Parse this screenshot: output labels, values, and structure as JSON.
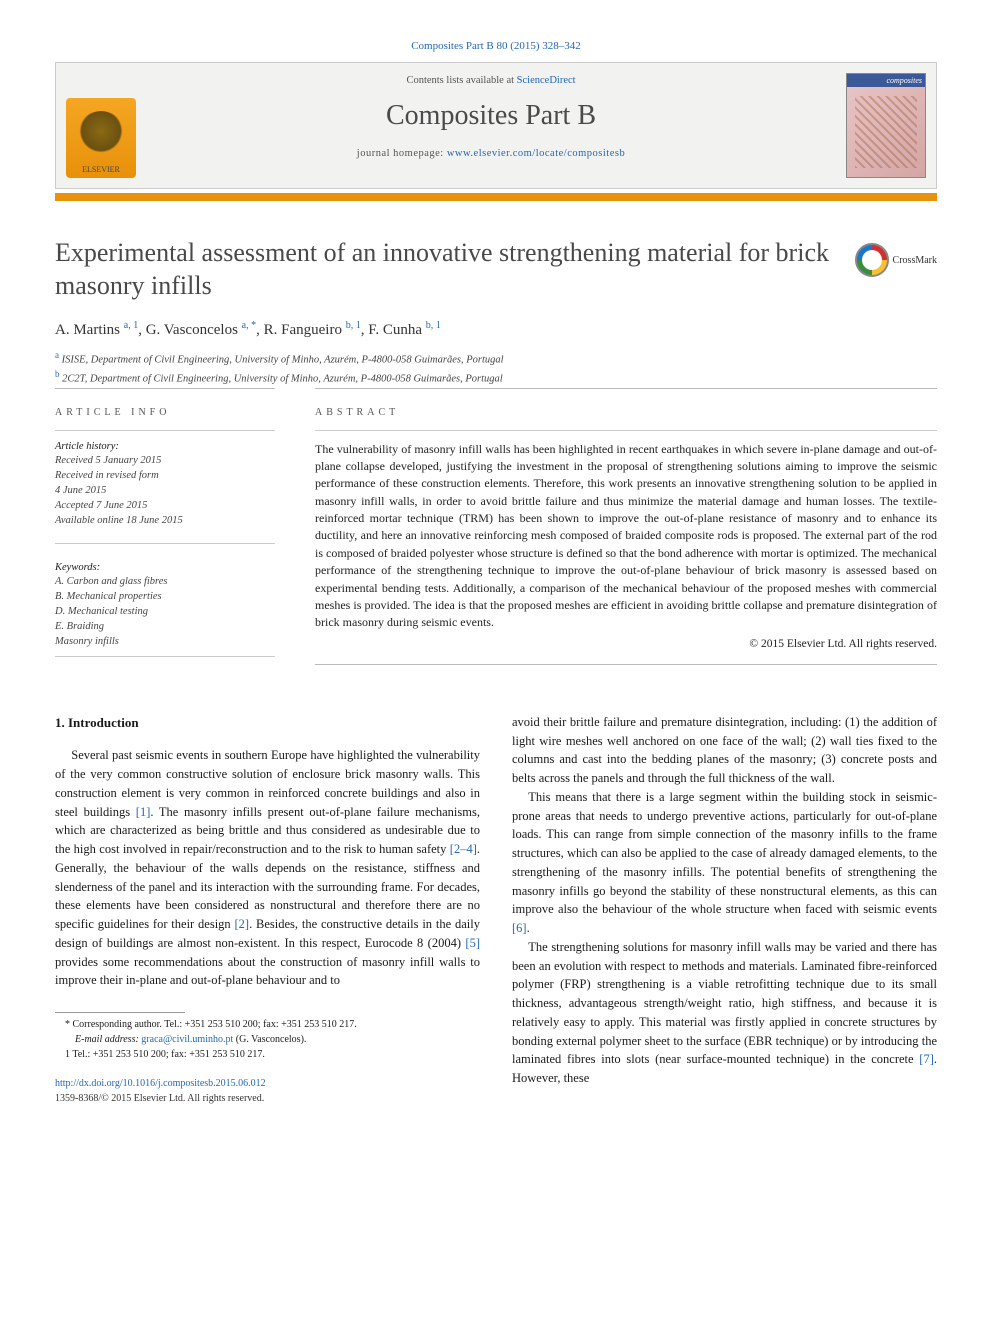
{
  "citation": "Composites Part B 80 (2015) 328–342",
  "header": {
    "contents_prefix": "Contents lists available at ",
    "contents_link": "ScienceDirect",
    "journal_name": "Composites Part B",
    "homepage_prefix": "journal homepage: ",
    "homepage_url": "www.elsevier.com/locate/compositesb",
    "publisher_logo_label": "ELSEVIER",
    "cover_label": "composites"
  },
  "colors": {
    "link": "#2468b3",
    "orange_bar": "#e8910a",
    "header_bg": "#f2f2f0",
    "text": "#1a1a1a",
    "heading_gray": "#484848"
  },
  "title": "Experimental assessment of an innovative strengthening material for brick masonry infills",
  "crossmark_label": "CrossMark",
  "authors": [
    {
      "name": "A. Martins",
      "marks": "a, 1"
    },
    {
      "name": "G. Vasconcelos",
      "marks": "a, *"
    },
    {
      "name": "R. Fangueiro",
      "marks": "b, 1"
    },
    {
      "name": "F. Cunha",
      "marks": "b, 1"
    }
  ],
  "affiliations": [
    {
      "mark": "a",
      "text": "ISISE, Department of Civil Engineering, University of Minho, Azurém, P-4800-058 Guimarães, Portugal"
    },
    {
      "mark": "b",
      "text": "2C2T, Department of Civil Engineering, University of Minho, Azurém, P-4800-058 Guimarães, Portugal"
    }
  ],
  "article_info": {
    "heading": "ARTICLE INFO",
    "history_label": "Article history:",
    "history": [
      "Received 5 January 2015",
      "Received in revised form",
      "4 June 2015",
      "Accepted 7 June 2015",
      "Available online 18 June 2015"
    ],
    "keywords_label": "Keywords:",
    "keywords": [
      "A. Carbon and glass fibres",
      "B. Mechanical properties",
      "D. Mechanical testing",
      "E. Braiding",
      "Masonry infills"
    ]
  },
  "abstract": {
    "heading": "ABSTRACT",
    "text": "The vulnerability of masonry infill walls has been highlighted in recent earthquakes in which severe in-plane damage and out-of-plane collapse developed, justifying the investment in the proposal of strengthening solutions aiming to improve the seismic performance of these construction elements. Therefore, this work presents an innovative strengthening solution to be applied in masonry infill walls, in order to avoid brittle failure and thus minimize the material damage and human losses. The textile-reinforced mortar technique (TRM) has been shown to improve the out-of-plane resistance of masonry and to enhance its ductility, and here an innovative reinforcing mesh composed of braided composite rods is proposed. The external part of the rod is composed of braided polyester whose structure is defined so that the bond adherence with mortar is optimized. The mechanical performance of the strengthening technique to improve the out-of-plane behaviour of brick masonry is assessed based on experimental bending tests. Additionally, a comparison of the mechanical behaviour of the proposed meshes with commercial meshes is provided. The idea is that the proposed meshes are efficient in avoiding brittle collapse and premature disintegration of brick masonry during seismic events.",
    "copyright": "© 2015 Elsevier Ltd. All rights reserved."
  },
  "intro": {
    "heading": "1. Introduction",
    "col1_p1": "Several past seismic events in southern Europe have highlighted the vulnerability of the very common constructive solution of enclosure brick masonry walls. This construction element is very common in reinforced concrete buildings and also in steel buildings [1]. The masonry infills present out-of-plane failure mechanisms, which are characterized as being brittle and thus considered as undesirable due to the high cost involved in repair/reconstruction and to the risk to human safety [2–4]. Generally, the behaviour of the walls depends on the resistance, stiffness and slenderness of the panel and its interaction with the surrounding frame. For decades, these elements have been considered as nonstructural and therefore there are no specific guidelines for their design [2]. Besides, the constructive details in the daily design of buildings are almost non-existent. In this respect, Eurocode 8 (2004) [5] provides some recommendations about the construction of masonry infill walls to improve their in-plane and out-of-plane behaviour and to",
    "col2_p1": "avoid their brittle failure and premature disintegration, including: (1) the addition of light wire meshes well anchored on one face of the wall; (2) wall ties fixed to the columns and cast into the bedding planes of the masonry; (3) concrete posts and belts across the panels and through the full thickness of the wall.",
    "col2_p2": "This means that there is a large segment within the building stock in seismic-prone areas that needs to undergo preventive actions, particularly for out-of-plane loads. This can range from simple connection of the masonry infills to the frame structures, which can also be applied to the case of already damaged elements, to the strengthening of the masonry infills. The potential benefits of strengthening the masonry infills go beyond the stability of these nonstructural elements, as this can improve also the behaviour of the whole structure when faced with seismic events [6].",
    "col2_p3": "The strengthening solutions for masonry infill walls may be varied and there has been an evolution with respect to methods and materials. Laminated fibre-reinforced polymer (FRP) strengthening is a viable retrofitting technique due to its small thickness, advantageous strength/weight ratio, high stiffness, and because it is relatively easy to apply. This material was firstly applied in concrete structures by bonding external polymer sheet to the surface (EBR technique) or by introducing the laminated fibres into slots (near surface-mounted technique) in the concrete [7]. However, these"
  },
  "footnotes": {
    "corr": "* Corresponding author. Tel.: +351 253 510 200; fax: +351 253 510 217.",
    "email_label": "E-mail address:",
    "email": "graca@civil.uminho.pt",
    "email_paren": "(G. Vasconcelos).",
    "tel": "1 Tel.: +351 253 510 200; fax: +351 253 510 217."
  },
  "doi": {
    "url": "http://dx.doi.org/10.1016/j.compositesb.2015.06.012",
    "issn_line": "1359-8368/© 2015 Elsevier Ltd. All rights reserved."
  }
}
